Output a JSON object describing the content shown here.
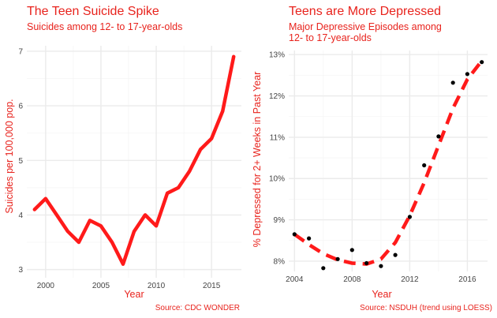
{
  "chart_data": [
    {
      "type": "line",
      "title": "The Teen Suicide Spike",
      "subtitle": "Suicides among 12- to 17-year-olds",
      "xlabel": "Year",
      "ylabel": "Suicides per 100,000 pop.",
      "caption": "Source: CDC WONDER",
      "xlim": [
        1998.3,
        2017.7
      ],
      "ylim": [
        2.85,
        7.1
      ],
      "x_ticks": [
        2000,
        2005,
        2010,
        2015
      ],
      "y_ticks": [
        3,
        4,
        5,
        6,
        7
      ],
      "grid": true,
      "color": "#ff1a1a",
      "x": [
        1999,
        2000,
        2001,
        2002,
        2003,
        2004,
        2005,
        2006,
        2007,
        2008,
        2009,
        2010,
        2011,
        2012,
        2013,
        2014,
        2015,
        2016,
        2017
      ],
      "values": [
        4.1,
        4.3,
        4.0,
        3.7,
        3.5,
        3.9,
        3.8,
        3.5,
        3.1,
        3.7,
        4.0,
        3.8,
        4.4,
        4.5,
        4.8,
        5.2,
        5.4,
        5.9,
        6.9
      ]
    },
    {
      "type": "scatter",
      "title": "Teens are More Depressed",
      "subtitle": "Major Depressive Episodes among 12- to 17-year-olds",
      "subtitle_lines": [
        "Major Depressive Episodes among",
        "12- to 17-year-olds"
      ],
      "xlabel": "Year",
      "ylabel": "% Depressed for 2+ Weeks in Past Year",
      "caption": "Source: NSDUH (trend using LOESS)",
      "xlim": [
        2003.6,
        2017.4
      ],
      "ylim": [
        7.75,
        13.1
      ],
      "x_ticks": [
        2004,
        2008,
        2012,
        2016
      ],
      "y_ticks": [
        8,
        9,
        10,
        11,
        12,
        13
      ],
      "y_tick_labels": [
        "8%",
        "9%",
        "10%",
        "11%",
        "12%",
        "13%"
      ],
      "grid": true,
      "color": "#ff1a1a",
      "points": {
        "x": [
          2004,
          2005,
          2006,
          2007,
          2008,
          2009,
          2010,
          2011,
          2012,
          2013,
          2014,
          2015,
          2016,
          2017
        ],
        "y": [
          8.65,
          8.55,
          7.83,
          8.05,
          8.27,
          7.95,
          7.88,
          8.15,
          9.07,
          10.32,
          11.02,
          12.32,
          12.53,
          12.82
        ]
      },
      "trend": {
        "x": [
          2004,
          2005,
          2006,
          2007,
          2008,
          2009,
          2010,
          2011,
          2012,
          2013,
          2014,
          2015,
          2016,
          2017
        ],
        "y": [
          8.65,
          8.4,
          8.18,
          8.03,
          7.95,
          7.93,
          8.05,
          8.45,
          9.1,
          9.9,
          10.8,
          11.7,
          12.4,
          12.85
        ]
      }
    }
  ]
}
